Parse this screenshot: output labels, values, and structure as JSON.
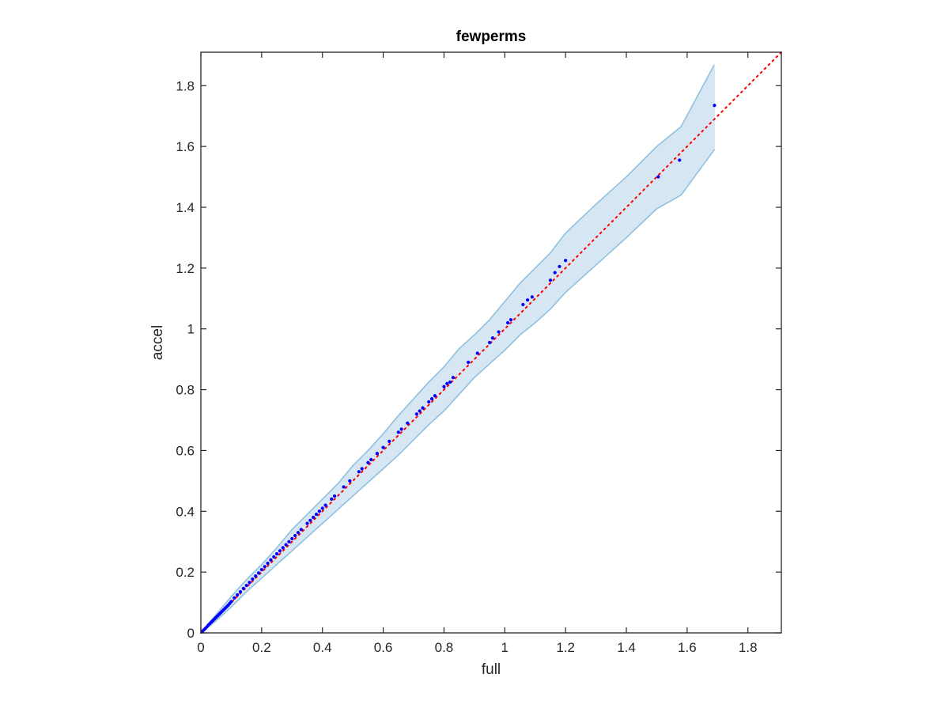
{
  "chart_data": {
    "type": "scatter",
    "title": "fewperms",
    "xlabel": "full",
    "ylabel": "accel",
    "xlim": [
      0,
      1.91
    ],
    "ylim": [
      0,
      1.91
    ],
    "xticks": [
      0,
      0.2,
      0.4,
      0.6,
      0.8,
      1,
      1.2,
      1.4,
      1.6,
      1.8
    ],
    "yticks": [
      0,
      0.2,
      0.4,
      0.6,
      0.8,
      1,
      1.2,
      1.4,
      1.6,
      1.8
    ],
    "xtick_labels": [
      "0",
      "0.2",
      "0.4",
      "0.6",
      "0.8",
      "1",
      "1.2",
      "1.4",
      "1.6",
      "1.8"
    ],
    "ytick_labels": [
      "0",
      "0.2",
      "0.4",
      "0.6",
      "0.8",
      "1",
      "1.2",
      "1.4",
      "1.6",
      "1.8"
    ],
    "grid": false,
    "box": true,
    "reference_line": {
      "style": "dotted",
      "color": "#ff0000",
      "from": [
        0,
        0
      ],
      "to": [
        1.91,
        1.91
      ]
    },
    "band": {
      "color_fill": "#d6e6f3",
      "color_edge": "#8fc1e0",
      "x": [
        0,
        0.05,
        0.1,
        0.15,
        0.2,
        0.25,
        0.3,
        0.35,
        0.4,
        0.45,
        0.5,
        0.55,
        0.6,
        0.65,
        0.7,
        0.75,
        0.8,
        0.85,
        0.9,
        0.95,
        1.0,
        1.05,
        1.1,
        1.15,
        1.2,
        1.3,
        1.4,
        1.5,
        1.58,
        1.69
      ],
      "upper": [
        0,
        0.06,
        0.12,
        0.175,
        0.225,
        0.28,
        0.34,
        0.39,
        0.44,
        0.49,
        0.55,
        0.6,
        0.655,
        0.715,
        0.77,
        0.825,
        0.875,
        0.935,
        0.98,
        1.03,
        1.09,
        1.15,
        1.2,
        1.25,
        1.315,
        1.41,
        1.5,
        1.6,
        1.665,
        1.87
      ],
      "lower": [
        0,
        0.04,
        0.085,
        0.135,
        0.18,
        0.225,
        0.27,
        0.315,
        0.36,
        0.405,
        0.45,
        0.495,
        0.54,
        0.585,
        0.635,
        0.685,
        0.73,
        0.785,
        0.84,
        0.885,
        0.93,
        0.98,
        1.02,
        1.065,
        1.12,
        1.21,
        1.3,
        1.395,
        1.44,
        1.59
      ]
    },
    "series": [
      {
        "color": "#0000ff",
        "x": [
          0.005,
          0.01,
          0.015,
          0.02,
          0.025,
          0.03,
          0.035,
          0.04,
          0.045,
          0.05,
          0.055,
          0.06,
          0.065,
          0.07,
          0.075,
          0.08,
          0.085,
          0.09,
          0.095,
          0.1,
          0.11,
          0.12,
          0.13,
          0.14,
          0.15,
          0.16,
          0.17,
          0.18,
          0.19,
          0.2,
          0.21,
          0.22,
          0.23,
          0.24,
          0.25,
          0.26,
          0.27,
          0.28,
          0.29,
          0.3,
          0.31,
          0.32,
          0.33,
          0.35,
          0.36,
          0.37,
          0.38,
          0.39,
          0.4,
          0.41,
          0.43,
          0.44,
          0.47,
          0.49,
          0.52,
          0.53,
          0.55,
          0.56,
          0.58,
          0.6,
          0.62,
          0.65,
          0.66,
          0.68,
          0.71,
          0.72,
          0.73,
          0.75,
          0.76,
          0.77,
          0.8,
          0.81,
          0.82,
          0.83,
          0.88,
          0.91,
          0.95,
          0.96,
          0.98,
          1.01,
          1.02,
          1.06,
          1.075,
          1.09,
          1.15,
          1.165,
          1.18,
          1.2,
          1.505,
          1.575,
          1.69
        ],
        "y": [
          0.005,
          0.01,
          0.015,
          0.02,
          0.026,
          0.031,
          0.036,
          0.041,
          0.046,
          0.051,
          0.056,
          0.061,
          0.066,
          0.071,
          0.076,
          0.081,
          0.086,
          0.091,
          0.097,
          0.103,
          0.115,
          0.125,
          0.135,
          0.146,
          0.156,
          0.166,
          0.177,
          0.187,
          0.197,
          0.208,
          0.218,
          0.229,
          0.24,
          0.25,
          0.26,
          0.27,
          0.28,
          0.29,
          0.3,
          0.31,
          0.32,
          0.33,
          0.34,
          0.36,
          0.37,
          0.38,
          0.39,
          0.4,
          0.41,
          0.42,
          0.44,
          0.45,
          0.48,
          0.5,
          0.53,
          0.54,
          0.56,
          0.57,
          0.59,
          0.61,
          0.63,
          0.66,
          0.67,
          0.69,
          0.72,
          0.73,
          0.74,
          0.76,
          0.77,
          0.78,
          0.81,
          0.82,
          0.825,
          0.84,
          0.89,
          0.92,
          0.955,
          0.97,
          0.99,
          1.02,
          1.03,
          1.08,
          1.095,
          1.105,
          1.16,
          1.185,
          1.205,
          1.225,
          1.5,
          1.555,
          1.735
        ]
      }
    ]
  }
}
